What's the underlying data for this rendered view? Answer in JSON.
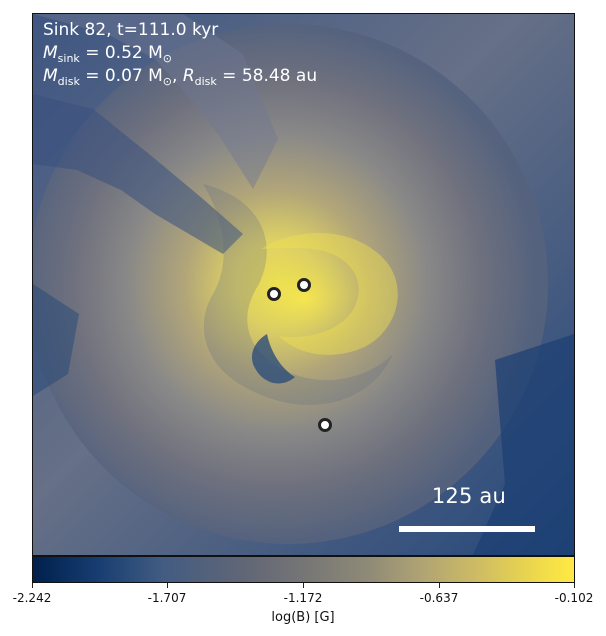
{
  "panel": {
    "header_line_1": "Sink 82, t=111.0 kyr",
    "mass_sink_symbol": "M",
    "mass_sink_subscript": "sink",
    "mass_sink_value": " = 0.52 M",
    "mass_sink_unit_subscript": "⊙",
    "mass_disk_symbol": "M",
    "mass_disk_subscript": "disk",
    "mass_disk_value": " = 0.07 M",
    "mass_disk_unit_subscript": "⊙",
    "separator": ", ",
    "radius_symbol": "R",
    "radius_subscript": "disk",
    "radius_value": " = 58.48 au",
    "scale_bar_label": "125 au",
    "scale_bar_length_au": 125
  },
  "colorbar": {
    "label": "log(B) [G]",
    "ticks": [
      "-2.242",
      "-1.707",
      "-1.172",
      "-0.637",
      "-0.102"
    ],
    "min": -2.242,
    "max": -0.102,
    "colors": [
      "#00204d",
      "#425c82",
      "#777775",
      "#b0a473",
      "#ffe945"
    ]
  },
  "markers": [
    {
      "name": "sink-marker-1"
    },
    {
      "name": "sink-marker-2"
    },
    {
      "name": "sink-marker-3"
    }
  ]
}
